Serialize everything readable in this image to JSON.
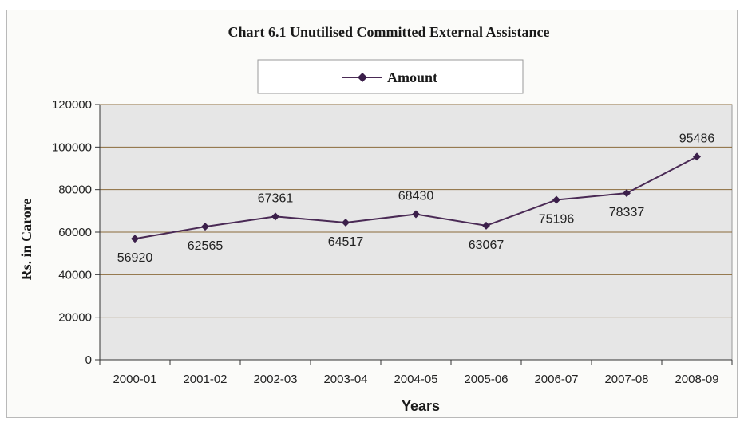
{
  "chart_data": {
    "type": "line",
    "title": "Chart 6.1 Unutilised Committed External Assistance",
    "xlabel": "Years",
    "ylabel": "Rs. in Carore",
    "categories": [
      "2000-01",
      "2001-02",
      "2002-03",
      "2003-04",
      "2004-05",
      "2005-06",
      "2006-07",
      "2007-08",
      "2008-09"
    ],
    "series": [
      {
        "name": "Amount",
        "values": [
          56920,
          62565,
          67361,
          64517,
          68430,
          63067,
          75196,
          78337,
          95486
        ]
      }
    ],
    "ylim": [
      0,
      120000
    ],
    "yticks": [
      0,
      20000,
      40000,
      60000,
      80000,
      100000,
      120000
    ],
    "grid": true,
    "legend_position": "top-center",
    "colors": {
      "line": "#4a2a55",
      "marker": "#3b1f4a",
      "plot_background": "#e6e6e6",
      "gridline": "#8a6a3a"
    }
  }
}
